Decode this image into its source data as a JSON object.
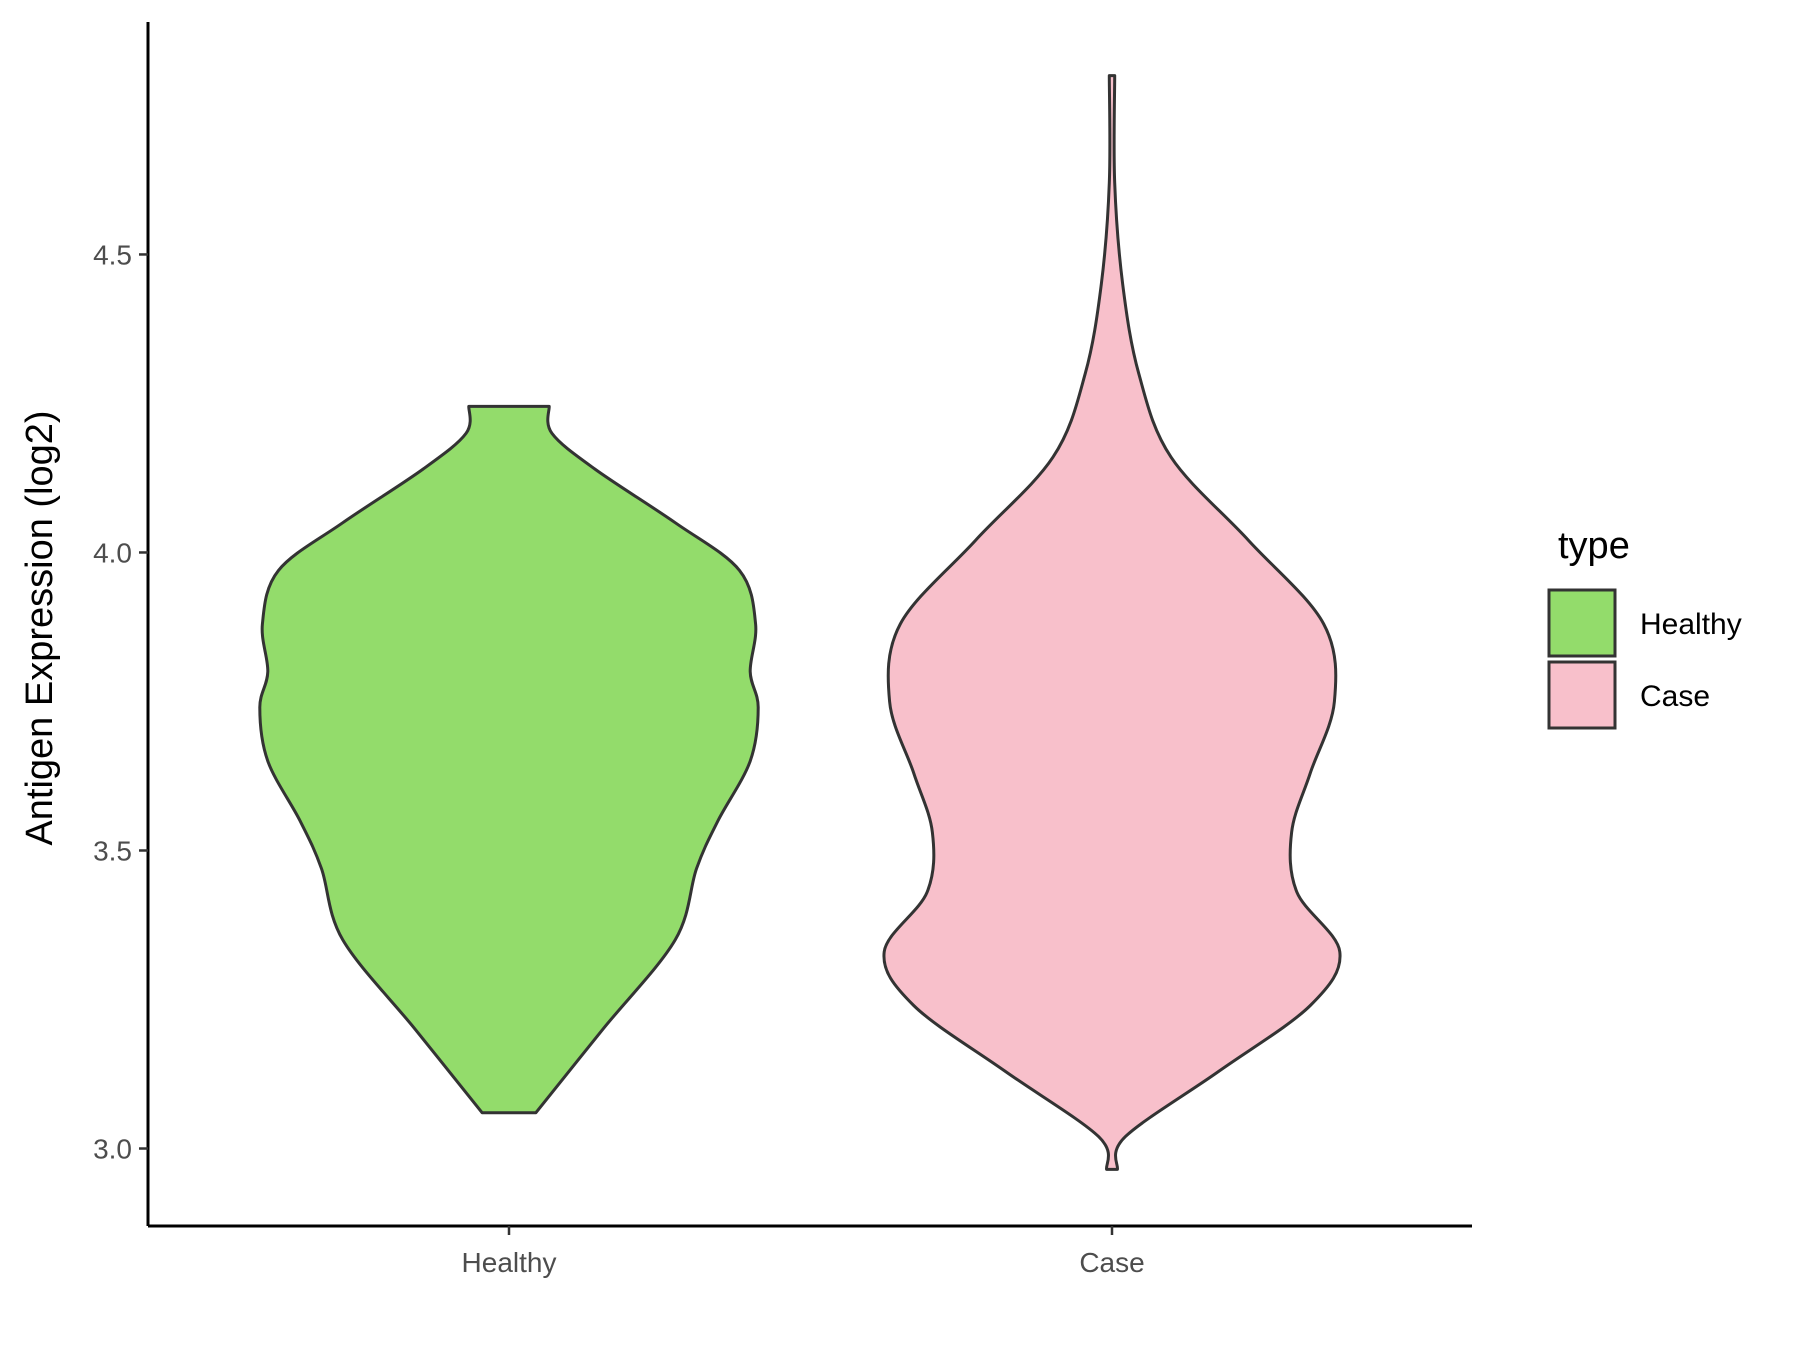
{
  "chart_data": {
    "type": "violin",
    "title": "",
    "xlabel": "",
    "ylabel": "Antigen Expression (log2)",
    "ylim": [
      2.87,
      4.89
    ],
    "yticks": [
      "3.0",
      "3.5",
      "4.0",
      "4.5"
    ],
    "categories": [
      "Healthy",
      "Case"
    ],
    "grid": false,
    "legend": {
      "title": "type",
      "position": "right",
      "entries": [
        "Healthy",
        "Case"
      ]
    },
    "series": [
      {
        "name": "Healthy",
        "color": "#93dc6b",
        "outline": "#333333",
        "density": [
          [
            3.06,
            0.1
          ],
          [
            3.2,
            0.35
          ],
          [
            3.35,
            0.62
          ],
          [
            3.47,
            0.7
          ],
          [
            3.55,
            0.78
          ],
          [
            3.65,
            0.9
          ],
          [
            3.74,
            0.93
          ],
          [
            3.8,
            0.9
          ],
          [
            3.88,
            0.92
          ],
          [
            3.97,
            0.86
          ],
          [
            4.05,
            0.62
          ],
          [
            4.14,
            0.32
          ],
          [
            4.2,
            0.16
          ],
          [
            4.245,
            0.15
          ]
        ]
      },
      {
        "name": "Case",
        "color": "#f8c0cb",
        "outline": "#333333",
        "density": [
          [
            2.965,
            0.02
          ],
          [
            3.02,
            0.05
          ],
          [
            3.13,
            0.4
          ],
          [
            3.24,
            0.74
          ],
          [
            3.33,
            0.85
          ],
          [
            3.43,
            0.69
          ],
          [
            3.53,
            0.67
          ],
          [
            3.63,
            0.74
          ],
          [
            3.75,
            0.83
          ],
          [
            3.88,
            0.79
          ],
          [
            4.02,
            0.51
          ],
          [
            4.16,
            0.22
          ],
          [
            4.3,
            0.1
          ],
          [
            4.45,
            0.04
          ],
          [
            4.62,
            0.01
          ],
          [
            4.8,
            0.01
          ]
        ]
      }
    ]
  }
}
